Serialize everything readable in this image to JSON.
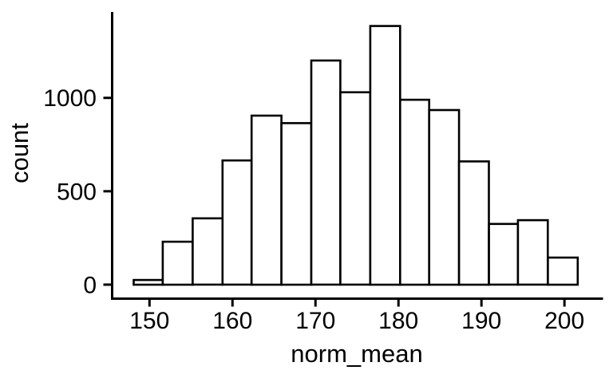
{
  "figure": {
    "background": "#ffffff"
  },
  "chart_data": {
    "type": "bar",
    "subtype": "histogram",
    "xlabel": "norm_mean",
    "ylabel": "count",
    "x_ticks": [
      150,
      160,
      170,
      180,
      190,
      200
    ],
    "y_ticks": [
      0,
      500,
      1000
    ],
    "xlim": [
      145.5,
      204.6
    ],
    "ylim": [
      -75,
      1460
    ],
    "bin_edges": [
      148.1,
      151.6,
      155.2,
      158.8,
      162.3,
      165.9,
      169.5,
      173.0,
      176.6,
      180.2,
      183.7,
      187.3,
      190.9,
      194.4,
      198.0,
      201.6
    ],
    "counts": [
      25,
      230,
      355,
      665,
      905,
      865,
      1200,
      1030,
      1385,
      990,
      935,
      660,
      325,
      345,
      145
    ],
    "bar_fill": "#ffffff",
    "bar_stroke": "#000000",
    "axis_color": "#000000",
    "grid": false,
    "legend": false
  }
}
